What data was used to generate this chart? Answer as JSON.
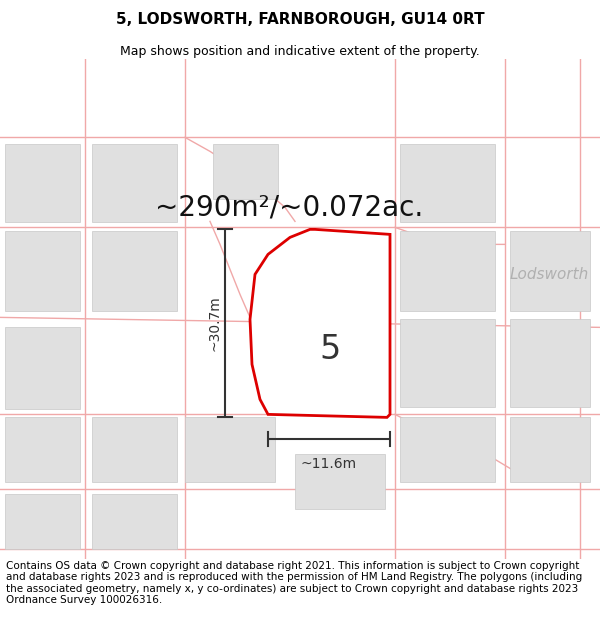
{
  "title": "5, LODSWORTH, FARNBOROUGH, GU14 0RT",
  "subtitle": "Map shows position and indicative extent of the property.",
  "area_text": "~290m²/~0.072ac.",
  "label_number": "5",
  "dim_height": "~30.7m",
  "dim_width": "~11.6m",
  "street_label": "Lodsworth",
  "street_label2": "dsworth",
  "footer": "Contains OS data © Crown copyright and database right 2021. This information is subject to Crown copyright and database rights 2023 and is reproduced with the permission of HM Land Registry. The polygons (including the associated geometry, namely x, y co-ordinates) are subject to Crown copyright and database rights 2023 Ordnance Survey 100026316.",
  "map_bg": "#ffffff",
  "plot_fill": "#ffffff",
  "plot_edge": "#dd0000",
  "block_color": "#e0e0e0",
  "road_color": "#f0a8a8",
  "dim_line_color": "#333333",
  "title_fontsize": 11,
  "subtitle_fontsize": 9,
  "area_fontsize": 20,
  "number_fontsize": 24,
  "dim_fontsize": 10,
  "footer_fontsize": 7.5,
  "street_fontsize": 11
}
